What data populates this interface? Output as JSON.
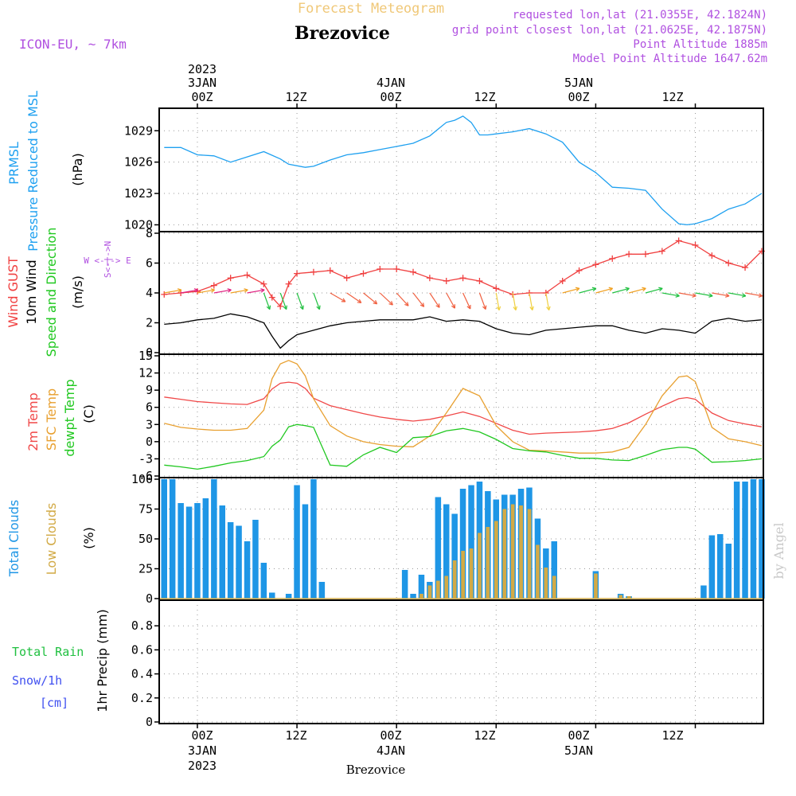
{
  "header": {
    "subtitle": "Forecast Meteogram",
    "station": "Brezovice",
    "model": "ICON-EU, ~ 7km",
    "requested": "requested lon,lat (21.0355E, 42.1824N)",
    "grid_point": "grid point closest lon,lat (21.0625E, 42.1875N)",
    "point_altitude": "Point Altitude 1885m",
    "model_altitude": "Model Point Altitude 1647.62m",
    "watermark": "by Angel",
    "footer_station": "Brezovice"
  },
  "time_axis": {
    "ticks": [
      "00Z",
      "12Z",
      "00Z",
      "12Z",
      "00Z",
      "12Z"
    ],
    "dates": [
      "3JAN",
      "4JAN",
      "5JAN"
    ],
    "year": "2023"
  },
  "panel_labels": {
    "pressure": [
      "PRMSL",
      "Pressure Reduced to MSL",
      "(hPa)"
    ],
    "wind": [
      "Wind GUST",
      "10m Wind",
      "Speed and Direction",
      "(m/s)"
    ],
    "wind_compass": [
      "W <-|-> E",
      "S<-|->N"
    ],
    "temp": [
      "2m Temp",
      "SFC Temp",
      "dewpt Temp",
      "(C)"
    ],
    "clouds": [
      "Total Clouds",
      "Low Clouds",
      "(%)"
    ],
    "precip": [
      "Total Rain",
      "Snow/1h",
      "[cm]",
      "1hr Precip (mm)"
    ]
  },
  "colors": {
    "pressure": "#1ea0f0",
    "gust": "#f04040",
    "wind": "#000000",
    "temp2m": "#f04848",
    "sfc": "#e8a030",
    "dewpt": "#20c820",
    "total_clouds": "#1e96e6",
    "low_clouds": "#d2aa46",
    "header_gold": "#f0c878",
    "purple": "#b050e0",
    "rain": "#20c040",
    "snow": "#4050f0"
  },
  "chart_data": [
    {
      "type": "line",
      "panel": "pressure",
      "ylabel": "(hPa)",
      "ylim": [
        1019.5,
        1031
      ],
      "yticks": [
        1020,
        1023,
        1026,
        1029
      ],
      "x_hours": [
        -4,
        -2,
        0,
        2,
        4,
        6,
        8,
        10,
        11,
        13,
        14,
        16,
        18,
        20,
        22,
        24,
        26,
        28,
        30,
        31,
        32,
        33,
        34,
        35,
        36,
        38,
        40,
        42,
        44,
        46,
        48,
        50,
        52,
        54,
        56,
        58,
        59,
        60,
        62,
        64,
        66,
        68
      ],
      "series": [
        {
          "values": [
            1027.4,
            1027.4,
            1026.7,
            1026.6,
            1026.0,
            1026.5,
            1027.0,
            1026.3,
            1025.8,
            1025.5,
            1025.6,
            1026.2,
            1026.7,
            1026.9,
            1027.2,
            1027.5,
            1027.8,
            1028.5,
            1029.8,
            1030.0,
            1030.4,
            1029.8,
            1028.6,
            1028.6,
            1028.7,
            1028.9,
            1029.2,
            1028.7,
            1027.9,
            1026.0,
            1025.0,
            1023.6,
            1023.5,
            1023.3,
            1021.5,
            1020.1,
            1020.0,
            1020.1,
            1020.6,
            1021.5,
            1022.0,
            1023.0
          ]
        }
      ]
    },
    {
      "type": "line",
      "panel": "wind",
      "ylabel": "(m/s)",
      "ylim": [
        0,
        8
      ],
      "yticks": [
        0,
        2,
        4,
        6,
        8
      ],
      "x_hours": [
        -4,
        -2,
        0,
        2,
        4,
        6,
        8,
        9,
        10,
        11,
        12,
        14,
        16,
        18,
        20,
        22,
        24,
        26,
        28,
        30,
        32,
        34,
        36,
        38,
        40,
        42,
        44,
        46,
        48,
        50,
        52,
        54,
        56,
        58,
        60,
        62,
        64,
        66,
        68
      ],
      "series": [
        {
          "name": "Wind GUST",
          "values": [
            3.9,
            4.0,
            4.1,
            4.5,
            5.0,
            5.2,
            4.6,
            3.7,
            3.1,
            4.6,
            5.3,
            5.4,
            5.5,
            5.0,
            5.3,
            5.6,
            5.6,
            5.4,
            5.0,
            4.8,
            5.0,
            4.8,
            4.3,
            3.9,
            4.0,
            4.0,
            4.8,
            5.5,
            5.9,
            6.3,
            6.6,
            6.6,
            6.8,
            7.5,
            7.2,
            6.5,
            6.0,
            5.7,
            6.8
          ]
        },
        {
          "name": "10m Wind",
          "values": [
            1.9,
            2.0,
            2.2,
            2.3,
            2.6,
            2.4,
            2.0,
            1.1,
            0.3,
            0.8,
            1.2,
            1.5,
            1.8,
            2.0,
            2.1,
            2.2,
            2.2,
            2.2,
            2.4,
            2.1,
            2.2,
            2.1,
            1.6,
            1.3,
            1.2,
            1.5,
            1.6,
            1.7,
            1.8,
            1.8,
            1.5,
            1.3,
            1.6,
            1.5,
            1.3,
            2.1,
            2.3,
            2.1,
            2.2
          ]
        }
      ]
    },
    {
      "type": "line",
      "panel": "temperature",
      "ylabel": "(C)",
      "ylim": [
        -6,
        15
      ],
      "yticks": [
        -6,
        -3,
        0,
        3,
        6,
        9,
        12,
        15
      ],
      "x_hours": [
        -4,
        -2,
        0,
        2,
        4,
        6,
        8,
        9,
        10,
        11,
        12,
        13,
        14,
        16,
        18,
        20,
        22,
        24,
        26,
        28,
        30,
        32,
        34,
        36,
        38,
        40,
        42,
        44,
        46,
        48,
        50,
        52,
        54,
        56,
        58,
        59,
        60,
        62,
        64,
        66,
        68
      ],
      "series": [
        {
          "name": "2m Temp",
          "values": [
            7.8,
            7.4,
            7.0,
            6.8,
            6.6,
            6.5,
            7.5,
            9.2,
            10.2,
            10.4,
            10.2,
            9.3,
            7.6,
            6.3,
            5.6,
            4.9,
            4.3,
            3.9,
            3.6,
            3.9,
            4.5,
            5.2,
            4.4,
            3.2,
            2.0,
            1.3,
            1.5,
            1.6,
            1.7,
            1.9,
            2.3,
            3.3,
            4.8,
            6.2,
            7.5,
            7.7,
            7.4,
            5.0,
            3.7,
            3.1,
            2.6
          ]
        },
        {
          "name": "SFC Temp",
          "values": [
            3.2,
            2.5,
            2.2,
            2.0,
            2.0,
            2.3,
            5.5,
            11.0,
            13.6,
            14.2,
            13.6,
            11.5,
            7.5,
            2.8,
            1.0,
            0.0,
            -0.5,
            -0.8,
            -0.9,
            1.0,
            5.0,
            9.3,
            8.0,
            2.8,
            0.0,
            -1.5,
            -1.6,
            -1.8,
            -2.0,
            -2.0,
            -1.8,
            -1.0,
            3.0,
            8.0,
            11.3,
            11.5,
            10.5,
            2.5,
            0.5,
            0.0,
            -0.7
          ]
        },
        {
          "name": "dewpt Temp",
          "values": [
            -4.1,
            -4.4,
            -4.8,
            -4.3,
            -3.7,
            -3.3,
            -2.6,
            -0.8,
            0.3,
            2.6,
            3.0,
            2.8,
            2.5,
            -4.1,
            -4.3,
            -2.3,
            -1.0,
            -1.9,
            0.7,
            0.9,
            1.9,
            2.3,
            1.7,
            0.4,
            -1.2,
            -1.6,
            -1.8,
            -2.4,
            -2.9,
            -2.9,
            -3.2,
            -3.3,
            -2.4,
            -1.4,
            -1.0,
            -1.0,
            -1.3,
            -3.6,
            -3.5,
            -3.3,
            -3.0
          ]
        }
      ]
    },
    {
      "type": "bar",
      "panel": "clouds",
      "ylabel": "(%)",
      "ylim": [
        0,
        100
      ],
      "yticks": [
        0,
        25,
        50,
        75,
        100
      ],
      "x_hours": [
        -4,
        -3,
        -2,
        -1,
        0,
        1,
        2,
        3,
        4,
        5,
        6,
        7,
        8,
        9,
        10,
        11,
        12,
        13,
        14,
        15,
        16,
        17,
        18,
        19,
        20,
        21,
        22,
        23,
        24,
        25,
        26,
        27,
        28,
        29,
        30,
        31,
        32,
        33,
        34,
        35,
        36,
        37,
        38,
        39,
        40,
        41,
        42,
        43,
        44,
        45,
        46,
        47,
        48,
        49,
        50,
        51,
        52,
        53,
        54,
        55,
        56,
        57,
        58,
        59,
        60,
        61,
        62,
        63,
        64,
        65,
        66,
        67,
        68
      ],
      "series": [
        {
          "name": "Total Clouds",
          "values": [
            100,
            100,
            80,
            77,
            80,
            84,
            100,
            78,
            64,
            61,
            48,
            66,
            30,
            5,
            0,
            4,
            95,
            79,
            100,
            14,
            0,
            0,
            0,
            0,
            0,
            0,
            0,
            0,
            0,
            24,
            4,
            20,
            14,
            85,
            79,
            71,
            92,
            95,
            98,
            90,
            83,
            87,
            87,
            92,
            93,
            67,
            42,
            48,
            0,
            0,
            0,
            0,
            23,
            0,
            0,
            4,
            2,
            0,
            0,
            0,
            0,
            0,
            0,
            0,
            0,
            11,
            53,
            54,
            46,
            98,
            98,
            100,
            100
          ]
        },
        {
          "name": "Low Clouds",
          "values": [
            0,
            0,
            0,
            0,
            0,
            0,
            0,
            0,
            0,
            0,
            0,
            0,
            0,
            0,
            0,
            0,
            0,
            0,
            0,
            0,
            0,
            0,
            0,
            0,
            0,
            0,
            0,
            0,
            0,
            0,
            0,
            4,
            11,
            15,
            19,
            32,
            40,
            42,
            55,
            60,
            65,
            75,
            79,
            78,
            75,
            45,
            26,
            19,
            0,
            0,
            0,
            0,
            21,
            0,
            0,
            3,
            2,
            0,
            0,
            0,
            0,
            0,
            0,
            0,
            0,
            0,
            0,
            0,
            0,
            0,
            0,
            0,
            0
          ]
        }
      ]
    },
    {
      "type": "bar",
      "panel": "precipitation",
      "ylabel": "1hr Precip (mm)",
      "ylim": [
        0,
        1
      ],
      "yticks": [
        0,
        0.2,
        0.4,
        0.6,
        0.8
      ],
      "series": [
        {
          "name": "Total Rain",
          "values": []
        },
        {
          "name": "Snow/1h",
          "values": []
        }
      ]
    }
  ]
}
